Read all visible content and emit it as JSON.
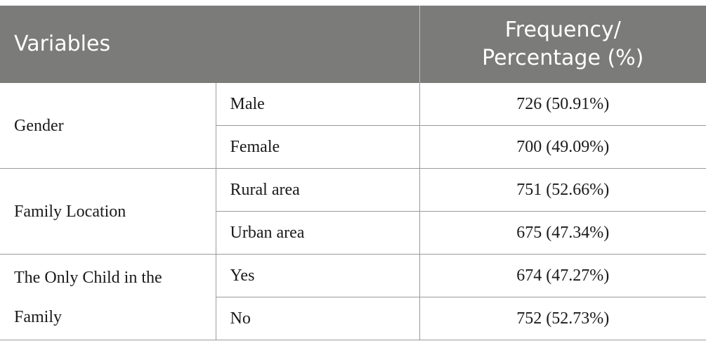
{
  "header": {
    "variables": "Variables",
    "frequency_line1": "Frequency/",
    "frequency_line2": "Percentage (%)"
  },
  "groups": [
    {
      "variable": "Gender",
      "rows": [
        {
          "category": "Male",
          "value": "726 (50.91%)"
        },
        {
          "category": "Female",
          "value": "700 (49.09%)"
        }
      ]
    },
    {
      "variable": "Family Location",
      "rows": [
        {
          "category": "Rural area",
          "value": "751 (52.66%)"
        },
        {
          "category": "Urban area",
          "value": "675 (47.34%)"
        }
      ]
    },
    {
      "variable": "The Only Child in the Family",
      "rows": [
        {
          "category": "Yes",
          "value": "674 (47.27%)"
        },
        {
          "category": "No",
          "value": "752 (52.73%)"
        }
      ]
    }
  ]
}
